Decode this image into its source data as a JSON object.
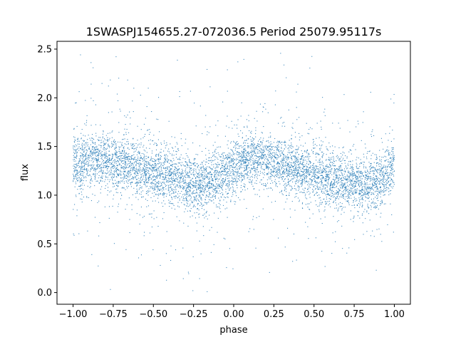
{
  "chart_data": {
    "type": "scatter",
    "title": "1SWASPJ154655.27-072036.5 Period 25079.95117s",
    "xlabel": "phase",
    "ylabel": "flux",
    "xlim": [
      -1.1,
      1.1
    ],
    "ylim": [
      -0.12,
      2.58
    ],
    "xticks": [
      -1.0,
      -0.75,
      -0.5,
      -0.25,
      0.0,
      0.25,
      0.5,
      0.75,
      1.0
    ],
    "xtick_labels": [
      "−1.00",
      "−0.75",
      "−0.50",
      "−0.25",
      "0.00",
      "0.25",
      "0.50",
      "0.75",
      "1.00"
    ],
    "yticks": [
      0.0,
      0.5,
      1.0,
      1.5,
      2.0,
      2.5
    ],
    "ytick_labels": [
      "0.0",
      "0.5",
      "1.0",
      "1.5",
      "2.0",
      "2.5"
    ],
    "grid": false,
    "marker_color": "#1f77b4",
    "series": [
      {
        "x_range": [
          -1.0,
          1.0
        ],
        "trend_phase": [
          -1.0,
          -0.9,
          -0.8,
          -0.7,
          -0.6,
          -0.5,
          -0.4,
          -0.3,
          -0.2,
          -0.1,
          0.0,
          0.1,
          0.2,
          0.3,
          0.4,
          0.5,
          0.6,
          0.7,
          0.8,
          0.9,
          1.0
        ],
        "trend_flux": [
          1.3,
          1.36,
          1.36,
          1.33,
          1.29,
          1.24,
          1.19,
          1.14,
          1.11,
          1.17,
          1.28,
          1.37,
          1.36,
          1.32,
          1.27,
          1.22,
          1.17,
          1.12,
          1.1,
          1.16,
          1.3
        ]
      }
    ]
  }
}
